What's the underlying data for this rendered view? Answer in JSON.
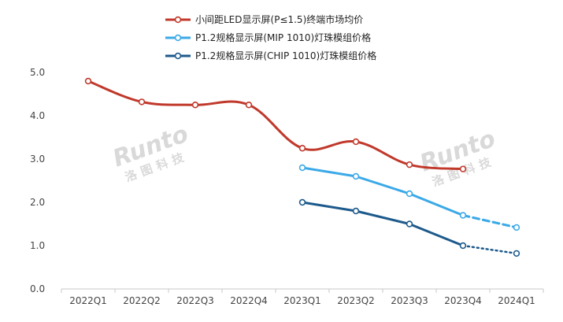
{
  "chart_data": {
    "type": "line",
    "categories": [
      "2022Q1",
      "2022Q2",
      "2022Q3",
      "2022Q4",
      "2023Q1",
      "2023Q2",
      "2023Q3",
      "2023Q4",
      "2024Q1"
    ],
    "ylim": [
      0,
      5
    ],
    "yticks": [
      "0.0",
      "1.0",
      "2.0",
      "3.0",
      "4.0",
      "5.0"
    ],
    "grid": false,
    "legend_position": "top-center",
    "series": [
      {
        "name": "小间距LED显示屏(P≤1.5)终端市场均价",
        "color": "#c0392b",
        "values": [
          4.8,
          4.32,
          4.25,
          4.25,
          3.25,
          3.4,
          2.87,
          2.77,
          null
        ],
        "projected_values": []
      },
      {
        "name": "P1.2规格显示屏(MIP 1010)灯珠模组价格",
        "color": "#3ba9e8",
        "values": [
          null,
          null,
          null,
          null,
          2.8,
          2.6,
          2.2,
          1.7,
          null
        ],
        "projected_values": [
          null,
          null,
          null,
          null,
          null,
          null,
          null,
          1.7,
          1.42
        ],
        "projected_style": "dashed"
      },
      {
        "name": "P1.2规格显示屏(CHIP 1010)灯珠模组价格",
        "color": "#1d5a8c",
        "values": [
          null,
          null,
          null,
          null,
          2.0,
          1.8,
          1.5,
          1.0,
          null
        ],
        "projected_values": [
          null,
          null,
          null,
          null,
          null,
          null,
          null,
          1.0,
          0.82
        ],
        "projected_style": "dotted"
      }
    ]
  },
  "watermark": {
    "logo_text": "Runto",
    "sub_text": "洛图科技"
  }
}
